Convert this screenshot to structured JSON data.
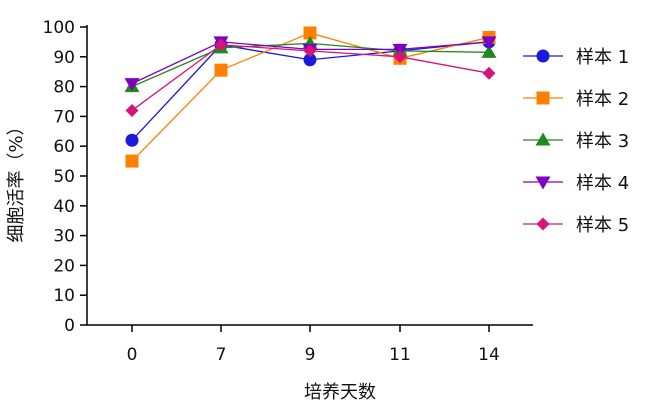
{
  "chart_data": {
    "type": "line",
    "xlabel": "培养天数",
    "ylabel": "细胞活率（%）",
    "x": [
      "0",
      "7",
      "9",
      "11",
      "14"
    ],
    "ylim": [
      0,
      100
    ],
    "yticks": [
      0,
      10,
      20,
      30,
      40,
      50,
      60,
      70,
      80,
      90,
      100
    ],
    "grid": false,
    "legend_position": "right",
    "series": [
      {
        "name": "样本 1",
        "color": "#1a1adb",
        "marker": "circle",
        "values": [
          62,
          94,
          89,
          92,
          95
        ]
      },
      {
        "name": "样本 2",
        "color": "#ff8000",
        "marker": "square",
        "values": [
          55,
          85.5,
          98,
          89.5,
          96.5
        ]
      },
      {
        "name": "样本 3",
        "color": "#1f8a1f",
        "marker": "triangle-up",
        "values": [
          80,
          93,
          94.5,
          92,
          91.5
        ]
      },
      {
        "name": "样本 4",
        "color": "#8000c0",
        "marker": "triangle-down",
        "values": [
          81,
          95,
          92.5,
          92.5,
          95
        ]
      },
      {
        "name": "样本 5",
        "color": "#d4147a",
        "marker": "diamond",
        "values": [
          72,
          94,
          92,
          90,
          84.5
        ]
      }
    ]
  }
}
